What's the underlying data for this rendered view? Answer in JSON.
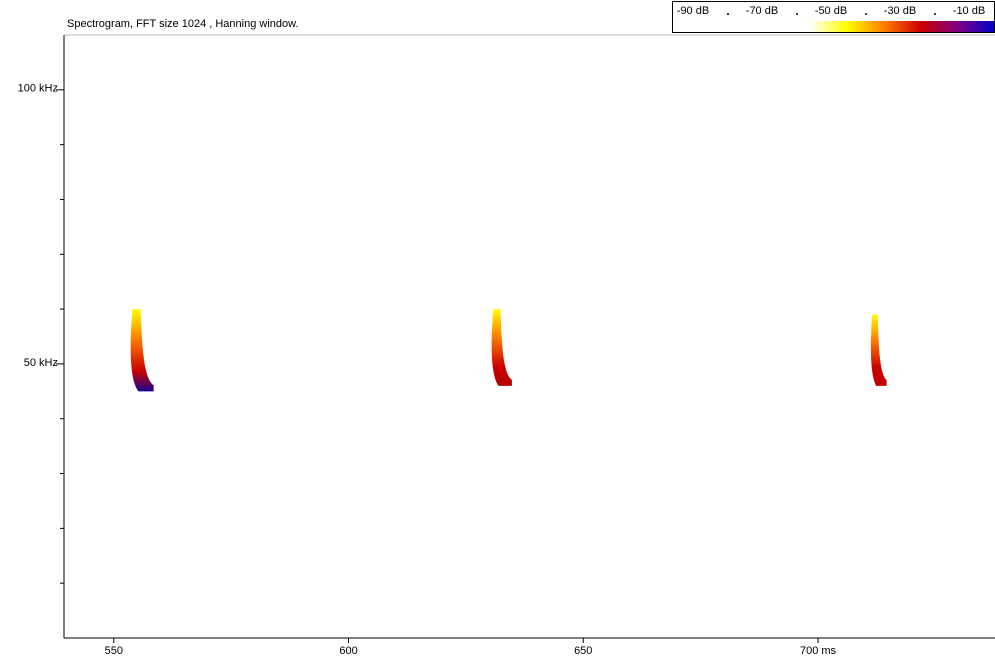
{
  "chart_data": {
    "type": "spectrogram",
    "title": "Spectrogram, FFT size 1024 , Hanning window.",
    "xlim": [
      539.4,
      737.7
    ],
    "ylim": [
      0,
      110
    ],
    "xticks": [
      550,
      600,
      650,
      {
        "value": 700,
        "label": "700 ms"
      }
    ],
    "yticks": [
      {
        "value": 50,
        "label": "50 kHz"
      },
      {
        "value": 100,
        "label": "100 kHz"
      }
    ],
    "yticks_minor": [
      10,
      20,
      30,
      40,
      60,
      70,
      80,
      90
    ],
    "colorbar": {
      "labels": [
        "-90 dB",
        "-70 dB",
        "-50 dB",
        "-30 dB",
        "-10 dB"
      ],
      "colors": [
        "#ffffff",
        "#ffff00",
        "#ff8000",
        "#cc0000",
        "#800080",
        "#0000cc"
      ]
    },
    "calls": [
      {
        "start": 553.5,
        "end": 558.5,
        "freq_high": 60,
        "freq_low": 45,
        "color": "#1a0090"
      },
      {
        "start": 630.4,
        "end": 634.8,
        "freq_high": 60,
        "freq_low": 46,
        "color": "#b00000"
      },
      {
        "start": 711.2,
        "end": 714.6,
        "freq_high": 59,
        "freq_low": 46,
        "color": "#c00000"
      }
    ]
  }
}
